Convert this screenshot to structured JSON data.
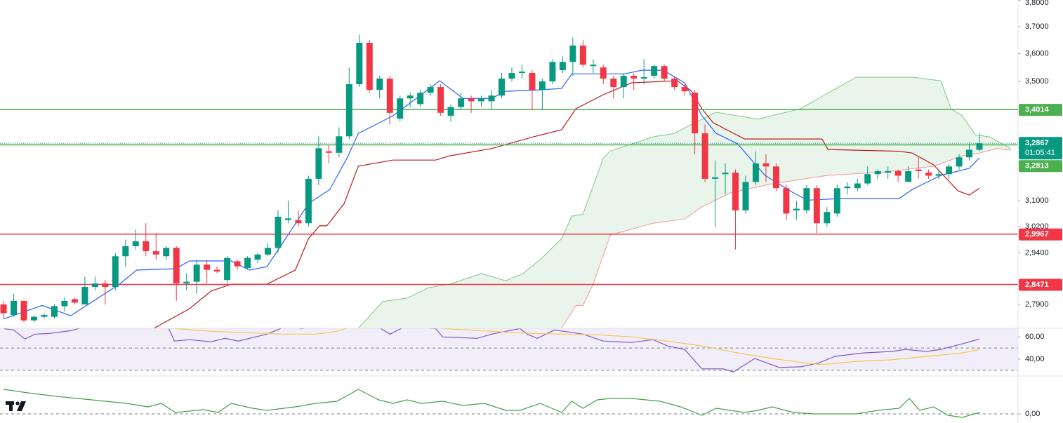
{
  "chart_data": [
    {
      "type": "candlestick",
      "open": [
        2.79,
        2.76,
        2.8,
        2.745,
        2.755,
        2.755,
        2.785,
        2.805,
        2.79,
        2.84,
        2.85,
        2.84,
        2.93,
        2.96,
        2.975,
        2.945,
        2.93,
        2.955,
        2.85,
        2.855,
        2.905,
        2.89,
        2.86,
        2.915,
        2.895,
        2.92,
        2.935,
        2.955,
        3.04,
        3.04,
        3.03,
        3.17,
        3.26,
        3.255,
        3.31,
        3.49,
        3.64,
        3.47,
        3.51,
        3.37,
        3.44,
        3.42,
        3.46,
        3.48,
        3.38,
        3.41,
        3.44,
        3.43,
        3.43,
        3.45,
        3.51,
        3.53,
        3.53,
        3.47,
        3.5,
        3.54,
        3.57,
        3.63,
        3.555,
        3.55,
        3.51,
        3.48,
        3.52,
        3.51,
        3.52,
        3.555,
        3.51,
        3.48,
        3.46,
        3.32,
        3.17,
        3.185,
        3.19,
        3.07,
        3.16,
        3.22,
        3.21,
        3.14,
        3.07,
        3.07,
        3.14,
        3.03,
        3.06,
        3.14,
        3.14,
        3.155,
        3.185,
        3.19,
        3.195,
        3.16,
        3.2,
        3.19,
        3.18,
        3.185,
        3.21,
        3.24,
        3.265
      ],
      "high": [
        2.8,
        2.82,
        2.8,
        2.76,
        2.765,
        2.79,
        2.81,
        2.81,
        2.87,
        2.87,
        2.86,
        2.94,
        2.98,
        3.01,
        3.03,
        3.0,
        2.96,
        2.96,
        2.88,
        2.92,
        2.92,
        2.9,
        2.93,
        2.92,
        2.93,
        2.94,
        2.97,
        3.07,
        3.1,
        3.07,
        3.18,
        3.31,
        3.28,
        3.34,
        3.55,
        3.67,
        3.65,
        3.52,
        3.52,
        3.45,
        3.46,
        3.47,
        3.49,
        3.49,
        3.42,
        3.46,
        3.45,
        3.45,
        3.47,
        3.53,
        3.55,
        3.56,
        3.54,
        3.51,
        3.58,
        3.59,
        3.66,
        3.65,
        3.58,
        3.56,
        3.52,
        3.53,
        3.53,
        3.58,
        3.56,
        3.56,
        3.52,
        3.49,
        3.47,
        3.35,
        3.23,
        3.22,
        3.2,
        3.18,
        3.26,
        3.25,
        3.22,
        3.15,
        3.1,
        3.15,
        3.15,
        3.08,
        3.15,
        3.16,
        3.17,
        3.21,
        3.2,
        3.21,
        3.2,
        3.21,
        3.24,
        3.2,
        3.2,
        3.22,
        3.25,
        3.29,
        3.32
      ],
      "low": [
        2.75,
        2.755,
        2.74,
        2.74,
        2.75,
        2.75,
        2.77,
        2.79,
        2.79,
        2.83,
        2.79,
        2.83,
        2.9,
        2.95,
        2.93,
        2.92,
        2.92,
        2.8,
        2.83,
        2.82,
        2.85,
        2.88,
        2.85,
        2.89,
        2.89,
        2.91,
        2.93,
        2.94,
        3.03,
        3.02,
        3.02,
        3.15,
        3.22,
        3.24,
        3.3,
        3.48,
        3.46,
        3.44,
        3.35,
        3.36,
        3.41,
        3.41,
        3.45,
        3.38,
        3.36,
        3.4,
        3.39,
        3.41,
        3.4,
        3.44,
        3.5,
        3.51,
        3.4,
        3.4,
        3.49,
        3.53,
        3.52,
        3.55,
        3.53,
        3.49,
        3.44,
        3.44,
        3.47,
        3.49,
        3.51,
        3.5,
        3.47,
        3.45,
        3.25,
        3.16,
        3.02,
        3.12,
        2.95,
        3.06,
        3.15,
        3.16,
        3.13,
        3.04,
        3.04,
        3.06,
        3.0,
        3.02,
        3.05,
        3.12,
        3.13,
        3.15,
        3.17,
        3.17,
        3.16,
        3.16,
        3.17,
        3.17,
        3.17,
        3.17,
        3.2,
        3.23,
        3.26
      ],
      "close": [
        2.765,
        2.8,
        2.745,
        2.755,
        2.76,
        2.785,
        2.8,
        2.795,
        2.84,
        2.85,
        2.84,
        2.93,
        2.96,
        2.975,
        2.945,
        2.935,
        2.955,
        2.85,
        2.855,
        2.905,
        2.89,
        2.885,
        2.925,
        2.9,
        2.925,
        2.935,
        2.955,
        3.05,
        3.045,
        3.03,
        3.17,
        3.27,
        3.255,
        3.31,
        3.49,
        3.64,
        3.47,
        3.51,
        3.39,
        3.44,
        3.45,
        3.46,
        3.48,
        3.39,
        3.41,
        3.44,
        3.43,
        3.44,
        3.45,
        3.51,
        3.53,
        3.535,
        3.47,
        3.5,
        3.57,
        3.57,
        3.63,
        3.56,
        3.56,
        3.51,
        3.48,
        3.52,
        3.51,
        3.515,
        3.555,
        3.51,
        3.48,
        3.465,
        3.32,
        3.17,
        3.175,
        3.19,
        3.07,
        3.16,
        3.22,
        3.21,
        3.14,
        3.06,
        3.075,
        3.14,
        3.03,
        3.065,
        3.14,
        3.145,
        3.155,
        3.185,
        3.195,
        3.195,
        3.18,
        3.195,
        3.195,
        3.18,
        3.185,
        3.21,
        3.24,
        3.265,
        3.2867
      ],
      "up_color": "#089981",
      "down_color": "#f23645",
      "xlim": [
        -0.35,
        99.8
      ],
      "ylim": [
        2.723,
        3.802
      ],
      "log_scale": true,
      "yticks": [
        {
          "value": 3.8,
          "label": "3,8000"
        },
        {
          "value": 3.7,
          "label": "3,7000"
        },
        {
          "value": 3.6,
          "label": "3,6000"
        },
        {
          "value": 3.5,
          "label": "3,5000"
        },
        {
          "value": 3.1,
          "label": "3,1000"
        },
        {
          "value": 3.02,
          "label": "3,0200"
        },
        {
          "value": 2.94,
          "label": "2,9400"
        },
        {
          "value": 2.79,
          "label": "2,7900"
        }
      ],
      "cloud": {
        "color": "#4caf50",
        "upper": {
          "color": "#81c784",
          "x": [
            34.9,
            37.3,
            39.7,
            41.8,
            43.9,
            47,
            49.4,
            51.1,
            52.8,
            54.9,
            55.9,
            57,
            59,
            59.7,
            63.9,
            66,
            68,
            70.1,
            74.2,
            78.4,
            80.8,
            83.9,
            89.4,
            92.2,
            93.2,
            94.3,
            95.6,
            97,
            99.1
          ],
          "values": [
            2.723,
            2.798,
            2.808,
            2.838,
            2.848,
            2.879,
            2.858,
            2.879,
            2.92,
            2.983,
            3.052,
            3.058,
            3.238,
            3.261,
            3.308,
            3.32,
            3.356,
            3.392,
            3.368,
            3.404,
            3.453,
            3.515,
            3.515,
            3.502,
            3.404,
            3.38,
            3.315,
            3.308,
            3.269
          ]
        },
        "lower": {
          "color": "#ef9a9a",
          "x": [
            54.9,
            56.3,
            57,
            58,
            59.7,
            63.9,
            67,
            68.7,
            71.5,
            75.6,
            81.1,
            86.7,
            91.5,
            94.3,
            96,
            97.7,
            99.1
          ],
          "values": [
            2.723,
            2.787,
            2.787,
            2.848,
            2.994,
            3.03,
            3.043,
            3.081,
            3.125,
            3.154,
            3.181,
            3.192,
            3.211,
            3.245,
            3.254,
            3.269,
            3.264
          ]
        }
      },
      "overlays": [
        {
          "color": "#2962ff",
          "x": [
            0,
            3.8,
            6.6,
            11.4,
            13.1,
            16.9,
            18.3,
            22.4,
            24.2,
            25.9,
            27.3,
            30,
            32.1,
            33.8,
            34.9,
            36.3,
            38.3,
            41.1,
            42.9,
            45.2,
            48,
            49.4,
            52.8,
            54.9,
            55.9,
            59,
            61.1,
            62.8,
            64.9,
            67,
            68.7,
            70.1,
            72.2,
            74.9,
            77.7,
            79.1,
            82.5,
            88.1,
            89.4,
            92.2,
            95,
            96
          ],
          "values": [
            2.749,
            2.787,
            2.758,
            2.848,
            2.889,
            2.893,
            2.916,
            2.916,
            2.889,
            2.899,
            2.962,
            3.091,
            3.136,
            3.238,
            3.32,
            3.344,
            3.38,
            3.453,
            3.502,
            3.44,
            3.44,
            3.465,
            3.47,
            3.475,
            3.527,
            3.527,
            3.527,
            3.54,
            3.54,
            3.495,
            3.38,
            3.32,
            3.285,
            3.181,
            3.125,
            3.102,
            3.107,
            3.107,
            3.136,
            3.181,
            3.204,
            3.238
          ]
        },
        {
          "color": "#b71c1c",
          "x": [
            14.8,
            18.3,
            20.4,
            22.4,
            25.9,
            28.7,
            30,
            31.1,
            31.8,
            33.5,
            34.9,
            38.3,
            42.5,
            43.9,
            48,
            52.1,
            54.9,
            56.3,
            59,
            61.8,
            66.3,
            67.7,
            68.7,
            69.8,
            72.9,
            80.5,
            81.1,
            88.1,
            89.4,
            91.5,
            93.9,
            95,
            96
          ],
          "values": [
            2.723,
            2.778,
            2.828,
            2.848,
            2.848,
            2.889,
            2.983,
            3.022,
            3.022,
            3.091,
            3.211,
            3.231,
            3.231,
            3.245,
            3.269,
            3.308,
            3.332,
            3.404,
            3.453,
            3.495,
            3.502,
            3.465,
            3.404,
            3.356,
            3.301,
            3.301,
            3.266,
            3.26,
            3.254,
            3.215,
            3.131,
            3.118,
            3.14
          ]
        }
      ],
      "levels": [
        {
          "value": 3.4014,
          "label": "3,4014",
          "color": "#4caf50"
        },
        {
          "value": 3.2813,
          "label": "3,2813",
          "color": "#4caf50"
        },
        {
          "value": 2.9967,
          "label": "2,9967",
          "color": "#f23645"
        },
        {
          "value": 2.8471,
          "label": "2,8471",
          "color": "#f23645"
        }
      ],
      "last_label": "3,2867",
      "countdown": "01:05:41"
    },
    {
      "type": "line",
      "xlim": [
        -0.35,
        99.8
      ],
      "ylim": [
        28,
        69
      ],
      "yticks": [
        {
          "value": 60,
          "label": "60,00"
        },
        {
          "value": 40,
          "label": "40,00"
        }
      ],
      "levels": [
        30,
        50,
        70
      ],
      "band_color": "#7e57c2",
      "series": [
        {
          "color": "#7e57c2",
          "x": [
            0,
            1.0,
            2.1,
            3.1,
            4.5,
            6.6,
            7.9,
            12,
            16.2,
            16.8,
            18.3,
            20.4,
            21.8,
            23.1,
            25.9,
            27.6,
            29.4,
            33,
            36.9,
            38,
            39.4,
            42.5,
            43.2,
            46.6,
            48,
            50.8,
            51.5,
            52.5,
            54.2,
            57,
            59,
            61.8,
            63.9,
            65.3,
            67,
            68.7,
            70.8,
            71.8,
            73.9,
            76.3,
            78.4,
            80.1,
            81.8,
            84.6,
            87.4,
            88.7,
            90.8,
            92.2,
            94.3,
            96
          ],
          "values": [
            67.5,
            66.25,
            58.1,
            62.5,
            63.1,
            65.6,
            68.75,
            72,
            68.75,
            56.25,
            57.5,
            55.6,
            58.75,
            56.25,
            62.5,
            68.75,
            67.5,
            72,
            68.75,
            62.5,
            68.75,
            67.5,
            60,
            58.75,
            62.5,
            67.5,
            62.5,
            58.75,
            66.25,
            62.5,
            56.25,
            55,
            57.5,
            51.9,
            48.75,
            31.25,
            31.25,
            28.5,
            40.6,
            32.5,
            33.1,
            36.25,
            42.5,
            45.6,
            46.9,
            48.75,
            46.9,
            48.75,
            53.75,
            58.1
          ]
        },
        {
          "color": "#f9c74f",
          "x": [
            13.5,
            16.9,
            20.4,
            23.8,
            27.3,
            30.7,
            32.8,
            34.2,
            38.3,
            48,
            52.1,
            58.4,
            61.8,
            65.3,
            68.7,
            72.2,
            75.6,
            79.1,
            80.5,
            84,
            87.4,
            90.8,
            94.3,
            96
          ],
          "values": [
            68.75,
            67.5,
            65,
            63.75,
            62.5,
            62.5,
            65,
            68.75,
            70,
            65,
            63.1,
            61.9,
            60,
            56.25,
            51.9,
            45.6,
            40.6,
            36.25,
            35,
            38.1,
            39.4,
            42.5,
            45.6,
            48.75
          ]
        }
      ]
    },
    {
      "type": "line",
      "xlim": [
        -0.35,
        99.8
      ],
      "ylim": [
        -1.3,
        5.2
      ],
      "yticks": [
        {
          "value": 0,
          "label": "0,00"
        }
      ],
      "levels": [
        0
      ],
      "series": [
        {
          "color": "#43a047",
          "x": [
            0,
            2.4,
            5.2,
            7.3,
            10,
            12.1,
            14.2,
            15.5,
            16.9,
            18.3,
            19.7,
            21.1,
            22.4,
            24.5,
            25.9,
            28.7,
            30.7,
            32.8,
            34.9,
            36.9,
            38.3,
            39.7,
            41.1,
            43.2,
            45.2,
            47.3,
            49.4,
            50.8,
            52.8,
            54.9,
            55.9,
            57,
            58.4,
            59.7,
            61.8,
            64.6,
            66.6,
            68.7,
            70.1,
            71.5,
            72.9,
            74.2,
            75.6,
            77.7,
            79.8,
            81.8,
            83.9,
            86,
            88.1,
            89.1,
            90.1,
            91.5,
            92.9,
            94.3,
            96
          ],
          "values": [
            3.5,
            3.0,
            2.5,
            2.2,
            1.8,
            1.5,
            1.0,
            1.5,
            0.2,
            0.4,
            0.6,
            0.2,
            1.5,
            0.8,
            0.5,
            1.0,
            1.5,
            1.8,
            3.5,
            2.0,
            1.5,
            2.0,
            1.5,
            1.8,
            1.2,
            1.5,
            0.5,
            0.5,
            1.5,
            0.2,
            1.8,
            0.8,
            2.0,
            2.2,
            2.2,
            1.8,
            1.0,
            -0.2,
            0.8,
            0.5,
            0.2,
            0.5,
            1.0,
            0.2,
            0,
            0,
            0,
            0.5,
            0.8,
            2.2,
            0.5,
            1.0,
            -0.2,
            -0.5,
            0.2
          ]
        }
      ]
    }
  ]
}
